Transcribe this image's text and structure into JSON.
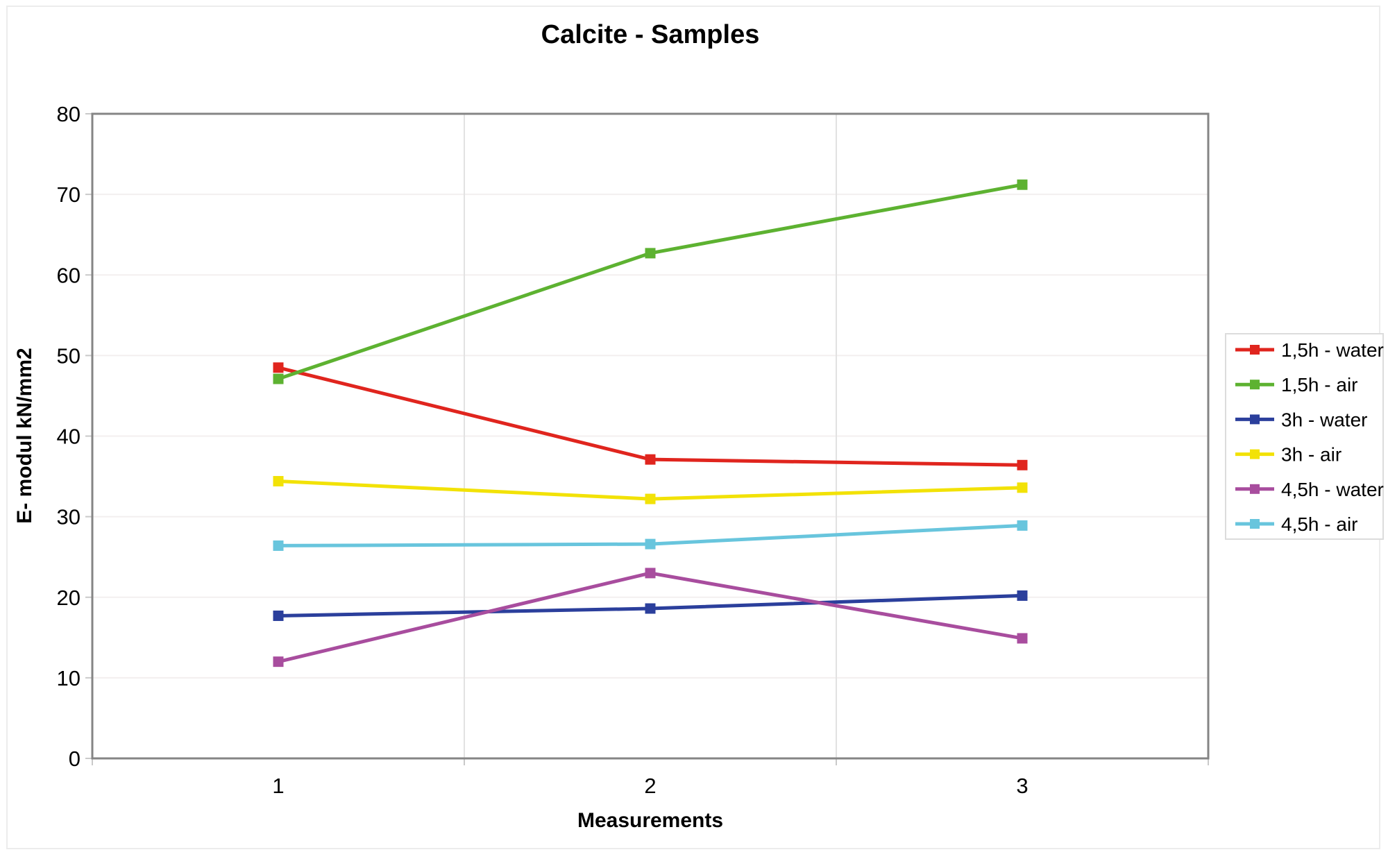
{
  "chart_data": {
    "type": "line",
    "title": "Calcite - Samples",
    "xlabel": "Measurements",
    "ylabel": "E- modul kN/mm2",
    "categories": [
      "1",
      "2",
      "3"
    ],
    "ylim": [
      0,
      80
    ],
    "yticks": [
      0,
      10,
      20,
      30,
      40,
      50,
      60,
      70,
      80
    ],
    "grid": {
      "horizontal": true,
      "vertical": true
    },
    "legend_position": "right",
    "marker": "square",
    "series": [
      {
        "name": "1,5h - water",
        "color": "#e0251e",
        "values": [
          48.5,
          37.1,
          36.4
        ]
      },
      {
        "name": "1,5h - air",
        "color": "#5db231",
        "values": [
          47.1,
          62.7,
          71.2
        ]
      },
      {
        "name": "3h - water",
        "color": "#2b3f9c",
        "values": [
          17.7,
          18.6,
          20.2
        ]
      },
      {
        "name": "3h - air",
        "color": "#f2e207",
        "values": [
          34.4,
          32.2,
          33.6
        ]
      },
      {
        "name": "4,5h - water",
        "color": "#a84d9e",
        "values": [
          12.0,
          23.0,
          14.9
        ]
      },
      {
        "name": "4,5h - air",
        "color": "#68c5dd",
        "values": [
          26.4,
          26.6,
          28.9
        ]
      }
    ]
  }
}
